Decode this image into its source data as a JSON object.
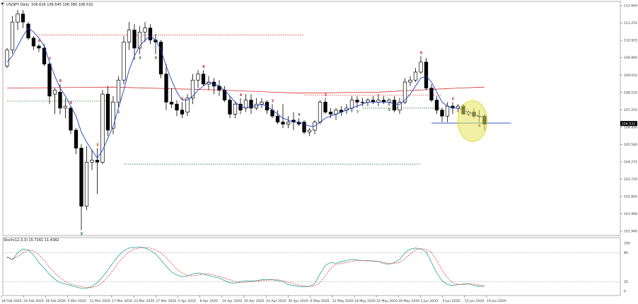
{
  "chart_data": {
    "type": "candlestick",
    "title": "USDJPY,Daily",
    "ohlc_header": "106.616 106.545 106.380 106.532",
    "price_axis": {
      "min": 100.94,
      "max": 112.63,
      "ticks": [
        "112.660",
        "111.255",
        "110.925",
        "109.995",
        "109.010",
        "108.155",
        "107.255",
        "106.450",
        "105.540",
        "104.275",
        "103.720",
        "102.845",
        "101.990",
        "101.940"
      ],
      "current_price": "106.532"
    },
    "date_labels": [
      "18 Feb 2020",
      "24 Feb 2020",
      "28 Feb 2020",
      "5 Mar 2020",
      "11 Mar 2020",
      "17 Mar 2020",
      "23 Mar 2020",
      "27 Mar 2020",
      "2 Apr 2020",
      "8 Apr 2020",
      "14 Apr 2020",
      "20 Apr 2020",
      "24 Apr 2020",
      "30 Apr 2020",
      "6 May 2020",
      "12 May 2020",
      "18 May 2020",
      "22 May 2020",
      "28 May 2020",
      "3 Jun 2020",
      "9 Jun 2020",
      "15 Jun 2020",
      "19 Jun 2020"
    ],
    "candles": [
      {
        "d": "18 Feb",
        "o": 109.4,
        "h": 110.3,
        "l": 109.3,
        "c": 110.2
      },
      {
        "d": "19 Feb",
        "o": 110.2,
        "h": 111.9,
        "l": 110.0,
        "c": 111.6
      },
      {
        "d": "20 Feb",
        "o": 111.6,
        "h": 112.2,
        "l": 111.2,
        "c": 112.0
      },
      {
        "d": "21 Feb",
        "o": 112.0,
        "h": 112.2,
        "l": 111.3,
        "c": 111.6
      },
      {
        "d": "24 Feb",
        "o": 111.5,
        "h": 111.6,
        "l": 110.7,
        "c": 110.8
      },
      {
        "d": "25 Feb",
        "o": 110.8,
        "h": 110.9,
        "l": 110.2,
        "c": 110.4
      },
      {
        "d": "26 Feb",
        "o": 110.4,
        "h": 110.5,
        "l": 110.1,
        "c": 110.3
      },
      {
        "d": "27 Feb",
        "o": 110.3,
        "h": 110.5,
        "l": 109.4,
        "c": 109.5
      },
      {
        "d": "28 Feb",
        "o": 109.5,
        "h": 109.6,
        "l": 107.5,
        "c": 107.9
      },
      {
        "d": "2 Mar",
        "o": 108.0,
        "h": 108.3,
        "l": 107.0,
        "c": 108.2
      },
      {
        "d": "3 Mar",
        "o": 108.1,
        "h": 108.5,
        "l": 107.0,
        "c": 107.3
      },
      {
        "d": "4 Mar",
        "o": 107.3,
        "h": 107.8,
        "l": 106.8,
        "c": 107.4
      },
      {
        "d": "5 Mar",
        "o": 107.3,
        "h": 107.4,
        "l": 106.0,
        "c": 106.2
      },
      {
        "d": "6 Mar",
        "o": 106.2,
        "h": 106.3,
        "l": 105.0,
        "c": 105.3
      },
      {
        "d": "9 Mar",
        "o": 105.3,
        "h": 105.5,
        "l": 101.2,
        "c": 102.4
      },
      {
        "d": "10 Mar",
        "o": 102.4,
        "h": 105.4,
        "l": 102.2,
        "c": 104.6
      },
      {
        "d": "11 Mar",
        "o": 104.6,
        "h": 105.2,
        "l": 104.2,
        "c": 104.7
      },
      {
        "d": "12 Mar",
        "o": 104.7,
        "h": 105.3,
        "l": 103.0,
        "c": 104.6
      },
      {
        "d": "13 Mar",
        "o": 104.6,
        "h": 108.2,
        "l": 104.5,
        "c": 108.0
      },
      {
        "d": "16 Mar",
        "o": 108.0,
        "h": 108.4,
        "l": 105.9,
        "c": 106.2
      },
      {
        "d": "17 Mar",
        "o": 106.3,
        "h": 107.9,
        "l": 106.0,
        "c": 107.6
      },
      {
        "d": "18 Mar",
        "o": 107.6,
        "h": 108.9,
        "l": 107.3,
        "c": 108.7
      },
      {
        "d": "19 Mar",
        "o": 108.7,
        "h": 110.9,
        "l": 108.5,
        "c": 110.6
      },
      {
        "d": "20 Mar",
        "o": 110.6,
        "h": 111.6,
        "l": 110.2,
        "c": 111.2
      },
      {
        "d": "23 Mar",
        "o": 111.2,
        "h": 111.5,
        "l": 109.7,
        "c": 110.3
      },
      {
        "d": "24 Mar",
        "o": 110.3,
        "h": 111.4,
        "l": 110.0,
        "c": 111.1
      },
      {
        "d": "25 Mar",
        "o": 111.1,
        "h": 111.6,
        "l": 110.6,
        "c": 111.3
      },
      {
        "d": "26 Mar",
        "o": 111.3,
        "h": 111.5,
        "l": 110.5,
        "c": 110.7
      },
      {
        "d": "27 Mar",
        "o": 110.7,
        "h": 111.0,
        "l": 110.0,
        "c": 110.6
      },
      {
        "d": "30 Mar",
        "o": 110.6,
        "h": 110.7,
        "l": 108.8,
        "c": 109.0
      },
      {
        "d": "31 Mar",
        "o": 109.0,
        "h": 109.5,
        "l": 107.2,
        "c": 107.6
      },
      {
        "d": "1 Apr",
        "o": 107.6,
        "h": 108.3,
        "l": 107.3,
        "c": 107.5
      },
      {
        "d": "2 Apr",
        "o": 107.5,
        "h": 107.7,
        "l": 106.9,
        "c": 107.2
      },
      {
        "d": "3 Apr",
        "o": 107.2,
        "h": 107.6,
        "l": 106.8,
        "c": 107.0
      },
      {
        "d": "6 Apr",
        "o": 107.1,
        "h": 108.0,
        "l": 106.9,
        "c": 107.8
      },
      {
        "d": "7 Apr",
        "o": 107.8,
        "h": 109.0,
        "l": 107.5,
        "c": 108.7
      },
      {
        "d": "8 Apr",
        "o": 108.7,
        "h": 109.2,
        "l": 108.3,
        "c": 109.0
      },
      {
        "d": "9 Apr",
        "o": 109.0,
        "h": 109.2,
        "l": 108.4,
        "c": 108.5
      },
      {
        "d": "10 Apr",
        "o": 108.5,
        "h": 108.9,
        "l": 108.2,
        "c": 108.6
      },
      {
        "d": "13 Apr",
        "o": 108.6,
        "h": 108.8,
        "l": 108.0,
        "c": 108.4
      },
      {
        "d": "14 Apr",
        "o": 108.4,
        "h": 108.7,
        "l": 107.9,
        "c": 108.2
      },
      {
        "d": "15 Apr",
        "o": 108.2,
        "h": 108.4,
        "l": 107.6,
        "c": 107.7
      },
      {
        "d": "16 Apr",
        "o": 107.7,
        "h": 107.9,
        "l": 106.8,
        "c": 107.0
      },
      {
        "d": "17 Apr",
        "o": 107.0,
        "h": 107.6,
        "l": 106.8,
        "c": 107.5
      },
      {
        "d": "20 Apr",
        "o": 107.5,
        "h": 107.8,
        "l": 107.0,
        "c": 107.2
      },
      {
        "d": "21 Apr",
        "o": 107.3,
        "h": 108.0,
        "l": 107.1,
        "c": 107.7
      },
      {
        "d": "22 Apr",
        "o": 107.7,
        "h": 108.0,
        "l": 107.0,
        "c": 107.3
      },
      {
        "d": "23 Apr",
        "o": 107.3,
        "h": 107.8,
        "l": 107.2,
        "c": 107.5
      },
      {
        "d": "24 Apr",
        "o": 107.5,
        "h": 107.8,
        "l": 107.3,
        "c": 107.6
      },
      {
        "d": "27 Apr",
        "o": 107.6,
        "h": 107.7,
        "l": 107.0,
        "c": 107.2
      },
      {
        "d": "28 Apr",
        "o": 107.2,
        "h": 107.5,
        "l": 106.8,
        "c": 106.9
      },
      {
        "d": "29 Apr",
        "o": 106.9,
        "h": 107.2,
        "l": 106.5,
        "c": 106.6
      },
      {
        "d": "30 Apr",
        "o": 106.6,
        "h": 107.5,
        "l": 106.3,
        "c": 106.5
      },
      {
        "d": "1 May",
        "o": 106.5,
        "h": 106.9,
        "l": 106.3,
        "c": 106.6
      },
      {
        "d": "4 May",
        "o": 106.7,
        "h": 107.1,
        "l": 106.2,
        "c": 106.6
      },
      {
        "d": "5 May",
        "o": 106.6,
        "h": 106.8,
        "l": 106.4,
        "c": 106.5
      },
      {
        "d": "6 May",
        "o": 106.6,
        "h": 106.7,
        "l": 106.0,
        "c": 106.1
      },
      {
        "d": "7 May",
        "o": 106.1,
        "h": 106.3,
        "l": 105.9,
        "c": 106.2
      },
      {
        "d": "8 May",
        "o": 106.2,
        "h": 106.7,
        "l": 106.0,
        "c": 106.6
      },
      {
        "d": "11 May",
        "o": 106.6,
        "h": 107.7,
        "l": 106.5,
        "c": 107.6
      },
      {
        "d": "12 May",
        "o": 107.6,
        "h": 107.8,
        "l": 107.0,
        "c": 107.1
      },
      {
        "d": "13 May",
        "o": 107.1,
        "h": 107.3,
        "l": 106.8,
        "c": 107.0
      },
      {
        "d": "14 May",
        "o": 107.0,
        "h": 107.3,
        "l": 106.7,
        "c": 107.2
      },
      {
        "d": "15 May",
        "o": 107.2,
        "h": 107.4,
        "l": 106.9,
        "c": 107.1
      },
      {
        "d": "18 May",
        "o": 107.2,
        "h": 107.5,
        "l": 107.0,
        "c": 107.3
      },
      {
        "d": "19 May",
        "o": 107.3,
        "h": 107.9,
        "l": 107.1,
        "c": 107.7
      },
      {
        "d": "20 May",
        "o": 107.7,
        "h": 107.9,
        "l": 107.3,
        "c": 107.6
      },
      {
        "d": "21 May",
        "o": 107.6,
        "h": 107.8,
        "l": 107.4,
        "c": 107.6
      },
      {
        "d": "22 May",
        "o": 107.6,
        "h": 107.8,
        "l": 107.4,
        "c": 107.7
      },
      {
        "d": "25 May",
        "o": 107.7,
        "h": 107.9,
        "l": 107.5,
        "c": 107.6
      },
      {
        "d": "26 May",
        "o": 107.6,
        "h": 108.0,
        "l": 107.4,
        "c": 107.7
      },
      {
        "d": "27 May",
        "o": 107.7,
        "h": 107.9,
        "l": 107.5,
        "c": 107.6
      },
      {
        "d": "28 May",
        "o": 107.6,
        "h": 107.8,
        "l": 107.4,
        "c": 107.7
      },
      {
        "d": "29 May",
        "o": 107.7,
        "h": 107.9,
        "l": 107.1,
        "c": 107.2
      },
      {
        "d": "1 Jun",
        "o": 107.2,
        "h": 107.8,
        "l": 107.0,
        "c": 107.6
      },
      {
        "d": "2 Jun",
        "o": 107.6,
        "h": 108.8,
        "l": 107.5,
        "c": 108.6
      },
      {
        "d": "3 Jun",
        "o": 108.6,
        "h": 108.9,
        "l": 108.4,
        "c": 108.7
      },
      {
        "d": "4 Jun",
        "o": 108.7,
        "h": 109.3,
        "l": 108.6,
        "c": 109.1
      },
      {
        "d": "5 Jun",
        "o": 109.1,
        "h": 109.9,
        "l": 109.0,
        "c": 109.6
      },
      {
        "d": "8 Jun",
        "o": 109.6,
        "h": 109.8,
        "l": 108.2,
        "c": 108.3
      },
      {
        "d": "9 Jun",
        "o": 108.3,
        "h": 108.5,
        "l": 107.6,
        "c": 107.7
      },
      {
        "d": "10 Jun",
        "o": 107.7,
        "h": 107.9,
        "l": 107.0,
        "c": 107.2
      },
      {
        "d": "11 Jun",
        "o": 107.2,
        "h": 107.3,
        "l": 106.6,
        "c": 106.9
      },
      {
        "d": "12 Jun",
        "o": 106.9,
        "h": 107.6,
        "l": 106.6,
        "c": 107.4
      },
      {
        "d": "15 Jun",
        "o": 107.4,
        "h": 107.6,
        "l": 107.0,
        "c": 107.3
      },
      {
        "d": "16 Jun",
        "o": 107.3,
        "h": 107.5,
        "l": 107.1,
        "c": 107.4
      },
      {
        "d": "17 Jun",
        "o": 107.4,
        "h": 107.5,
        "l": 107.0,
        "c": 107.0
      },
      {
        "d": "18 Jun",
        "o": 107.0,
        "h": 107.2,
        "l": 106.9,
        "c": 107.1
      },
      {
        "d": "19 Jun",
        "o": 107.1,
        "h": 107.3,
        "l": 106.8,
        "c": 106.9
      },
      {
        "d": "22 Jun",
        "o": 106.9,
        "h": 107.2,
        "l": 106.6,
        "c": 106.9
      },
      {
        "d": "23 Jun",
        "o": 106.9,
        "h": 107.0,
        "l": 106.2,
        "c": 106.5
      }
    ],
    "moving_average_blue": [
      109.6,
      109.9,
      110.4,
      110.9,
      111.3,
      111.1,
      110.8,
      110.4,
      109.6,
      108.9,
      108.3,
      107.9,
      107.4,
      106.9,
      106.1,
      105.6,
      105.2,
      104.8,
      105.2,
      105.8,
      106.4,
      107.3,
      108.2,
      109.2,
      109.9,
      110.4,
      110.7,
      110.9,
      110.7,
      110.2,
      109.4,
      108.7,
      108.1,
      107.7,
      107.7,
      107.9,
      108.2,
      108.4,
      108.6,
      108.5,
      108.4,
      108.2,
      107.9,
      107.6,
      107.4,
      107.3,
      107.4,
      107.4,
      107.5,
      107.4,
      107.2,
      107.0,
      106.8,
      106.7,
      106.6,
      106.6,
      106.5,
      106.4,
      106.4,
      106.6,
      106.8,
      106.9,
      107.0,
      107.1,
      107.2,
      107.3,
      107.4,
      107.5,
      107.6,
      107.6,
      107.6,
      107.6,
      107.6,
      107.5,
      107.5,
      107.7,
      108.0,
      108.4,
      108.8,
      108.9,
      108.6,
      108.1,
      107.6,
      107.4,
      107.3,
      107.3,
      107.2,
      107.1,
      107.0,
      106.9,
      106.8
    ],
    "long_ma_red": [
      {
        "i": 0,
        "v": 108.3
      },
      {
        "i": 20,
        "v": 108.35
      },
      {
        "i": 40,
        "v": 108.2
      },
      {
        "i": 55,
        "v": 108.05
      },
      {
        "i": 70,
        "v": 108.1
      },
      {
        "i": 85,
        "v": 108.3
      },
      {
        "i": 90,
        "v": 108.35
      }
    ],
    "hlines": [
      {
        "price": 110.95,
        "from": 6,
        "to": 56,
        "color": "#e53935",
        "style": "dotted"
      },
      {
        "price": 107.65,
        "from": 0,
        "to": 20,
        "color": "#2e7d32",
        "style": "dotted"
      },
      {
        "price": 104.5,
        "from": 22,
        "to": 78,
        "color": "#2e7d32",
        "style": "dotted"
      },
      {
        "price": 107.95,
        "from": 56,
        "to": 82,
        "color": "#e53935",
        "style": "dotted"
      },
      {
        "price": 107.3,
        "from": 67,
        "to": 82,
        "color": "#2e7d32",
        "style": "dotted"
      },
      {
        "price": 106.55,
        "from": 80,
        "to": 95,
        "color": "#5b7bd5",
        "style": "solid"
      }
    ],
    "highlight": {
      "i": 88,
      "price": 106.65,
      "color": "#e6e35a"
    },
    "td_labels": [
      {
        "i": 6,
        "t": "8",
        "c": "#c62828"
      },
      {
        "i": 8,
        "t": "7",
        "c": "#c62828"
      },
      {
        "i": 10,
        "t": "8",
        "c": "#c62828"
      },
      {
        "i": 12,
        "t": "9",
        "c": "#c62828"
      },
      {
        "i": 14,
        "t": "9",
        "c": "#2e7d32"
      },
      {
        "i": 17,
        "t": "3",
        "c": "#c62828"
      },
      {
        "i": 21,
        "t": "1",
        "c": "#2e7d32"
      },
      {
        "i": 25,
        "t": "4",
        "c": "#2e7d32"
      },
      {
        "i": 28,
        "t": "8",
        "c": "#2e7d32"
      },
      {
        "i": 33,
        "t": "5",
        "c": "#c62828"
      },
      {
        "i": 37,
        "t": "8",
        "c": "#c62828"
      },
      {
        "i": 44,
        "t": "4",
        "c": "#c62828"
      },
      {
        "i": 50,
        "t": "3",
        "c": "#c62828"
      },
      {
        "i": 55,
        "t": "9",
        "c": "#2e7d32"
      },
      {
        "i": 60,
        "t": "3",
        "c": "#c62828"
      },
      {
        "i": 66,
        "t": "7",
        "c": "#2e7d32"
      },
      {
        "i": 72,
        "t": "5",
        "c": "#2e7d32"
      },
      {
        "i": 78,
        "t": "9",
        "c": "#c62828"
      },
      {
        "i": 84,
        "t": "5",
        "c": "#c62828"
      },
      {
        "i": 89,
        "t": "6",
        "c": "#333333"
      }
    ],
    "stochastic": {
      "title": "Stoch(12,3,3) 15.7161 11.4382",
      "levels": [
        "80",
        "20"
      ],
      "axis_labels": [
        "100",
        "80",
        "20",
        "0"
      ],
      "k": [
        72,
        65,
        80,
        88,
        86,
        75,
        60,
        48,
        35,
        25,
        18,
        15,
        12,
        9,
        6,
        6,
        10,
        18,
        30,
        44,
        60,
        74,
        84,
        90,
        91,
        92,
        90,
        85,
        78,
        65,
        52,
        40,
        34,
        30,
        32,
        36,
        38,
        36,
        33,
        30,
        28,
        22,
        18,
        17,
        20,
        22,
        21,
        22,
        24,
        25,
        24,
        22,
        20,
        14,
        12,
        10,
        9,
        10,
        16,
        36,
        54,
        60,
        58,
        62,
        64,
        66,
        65,
        64,
        64,
        63,
        62,
        58,
        56,
        60,
        66,
        80,
        88,
        90,
        88,
        82,
        60,
        38,
        22,
        14,
        12,
        14,
        15,
        16,
        12,
        10,
        11
      ],
      "d": [
        70,
        68,
        72,
        80,
        85,
        84,
        76,
        64,
        50,
        38,
        28,
        20,
        15,
        12,
        10,
        8,
        8,
        11,
        18,
        30,
        44,
        60,
        72,
        82,
        88,
        90,
        91,
        90,
        86,
        80,
        70,
        58,
        46,
        38,
        33,
        32,
        34,
        36,
        36,
        34,
        31,
        28,
        24,
        20,
        18,
        19,
        20,
        21,
        22,
        23,
        24,
        24,
        22,
        19,
        16,
        13,
        11,
        10,
        11,
        18,
        32,
        48,
        56,
        58,
        60,
        62,
        64,
        64,
        63,
        63,
        62,
        60,
        58,
        58,
        60,
        68,
        78,
        86,
        89,
        87,
        80,
        64,
        44,
        28,
        18,
        14,
        14,
        15,
        15,
        13,
        11
      ]
    }
  }
}
